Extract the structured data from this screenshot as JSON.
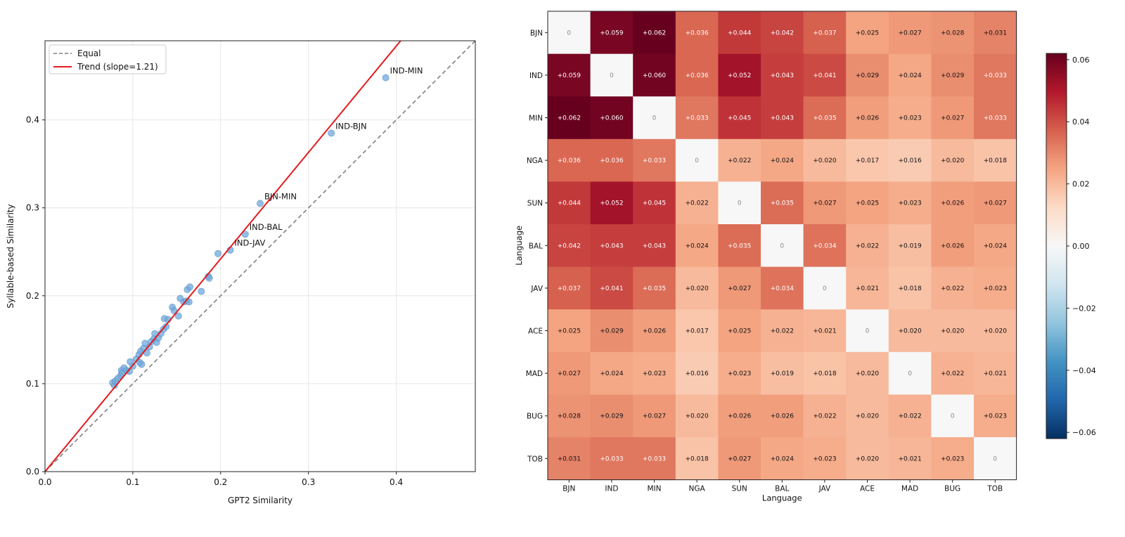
{
  "chart_data": [
    {
      "type": "scatter",
      "xlabel": "GPT2 Similarity",
      "ylabel": "Syllable-based Similarity",
      "xlim": [
        0,
        0.49
      ],
      "ylim": [
        0,
        0.49
      ],
      "xticks": [
        0.0,
        0.1,
        0.2,
        0.3,
        0.4
      ],
      "yticks": [
        0.0,
        0.1,
        0.2,
        0.3,
        0.4
      ],
      "xtick_labels": [
        "0.0",
        "0.1",
        "0.2",
        "0.3",
        "0.4"
      ],
      "ytick_labels": [
        "0.0",
        "0.1",
        "0.2",
        "0.3",
        "0.4"
      ],
      "grid": true,
      "legend_position": "top-left",
      "legend": [
        {
          "label": "Equal",
          "style": "dashed",
          "color": "#7f7f7f"
        },
        {
          "label": "Trend (slope=1.21)",
          "style": "solid",
          "color": "#e41a1c"
        }
      ],
      "lines": {
        "equal": {
          "slope": 1.0,
          "intercept": 0.0
        },
        "trend": {
          "slope": 1.21,
          "intercept": 0.0
        }
      },
      "marker_color": "#6fa8dc",
      "points": [
        [
          0.077,
          0.101
        ],
        [
          0.079,
          0.098
        ],
        [
          0.08,
          0.103
        ],
        [
          0.083,
          0.106
        ],
        [
          0.086,
          0.109
        ],
        [
          0.087,
          0.115
        ],
        [
          0.088,
          0.112
        ],
        [
          0.09,
          0.118
        ],
        [
          0.093,
          0.115
        ],
        [
          0.096,
          0.114
        ],
        [
          0.097,
          0.125
        ],
        [
          0.1,
          0.12
        ],
        [
          0.104,
          0.128
        ],
        [
          0.107,
          0.133
        ],
        [
          0.108,
          0.124
        ],
        [
          0.11,
          0.122
        ],
        [
          0.109,
          0.137
        ],
        [
          0.112,
          0.14
        ],
        [
          0.114,
          0.146
        ],
        [
          0.116,
          0.135
        ],
        [
          0.119,
          0.142
        ],
        [
          0.121,
          0.148
        ],
        [
          0.124,
          0.151
        ],
        [
          0.125,
          0.157
        ],
        [
          0.127,
          0.147
        ],
        [
          0.129,
          0.152
        ],
        [
          0.132,
          0.157
        ],
        [
          0.135,
          0.162
        ],
        [
          0.136,
          0.174
        ],
        [
          0.138,
          0.165
        ],
        [
          0.14,
          0.173
        ],
        [
          0.145,
          0.187
        ],
        [
          0.147,
          0.183
        ],
        [
          0.152,
          0.177
        ],
        [
          0.154,
          0.197
        ],
        [
          0.158,
          0.193
        ],
        [
          0.161,
          0.194
        ],
        [
          0.162,
          0.207
        ],
        [
          0.164,
          0.193
        ],
        [
          0.165,
          0.21
        ],
        [
          0.178,
          0.205
        ],
        [
          0.186,
          0.222
        ],
        [
          0.187,
          0.22
        ],
        [
          0.197,
          0.248
        ],
        [
          0.211,
          0.252
        ],
        [
          0.228,
          0.27
        ],
        [
          0.245,
          0.305
        ],
        [
          0.326,
          0.385
        ],
        [
          0.388,
          0.448
        ]
      ],
      "annotations": [
        {
          "label": "IND-MIN",
          "x": 0.388,
          "y": 0.448
        },
        {
          "label": "IND-BJN",
          "x": 0.326,
          "y": 0.385
        },
        {
          "label": "BJN-MIN",
          "x": 0.245,
          "y": 0.305
        },
        {
          "label": "IND-BAL",
          "x": 0.228,
          "y": 0.27
        },
        {
          "label": "IND-JAV",
          "x": 0.211,
          "y": 0.252
        }
      ]
    },
    {
      "type": "heatmap",
      "xlabel": "Language",
      "ylabel": "Language",
      "labels": [
        "BJN",
        "IND",
        "MIN",
        "NGA",
        "SUN",
        "BAL",
        "JAV",
        "ACE",
        "MAD",
        "BUG",
        "TOB"
      ],
      "values": [
        [
          0,
          0.059,
          0.062,
          0.036,
          0.044,
          0.042,
          0.037,
          0.025,
          0.027,
          0.028,
          0.031
        ],
        [
          0.059,
          0,
          0.06,
          0.036,
          0.052,
          0.043,
          0.041,
          0.029,
          0.024,
          0.029,
          0.033
        ],
        [
          0.062,
          0.06,
          0,
          0.033,
          0.045,
          0.043,
          0.035,
          0.026,
          0.023,
          0.027,
          0.033
        ],
        [
          0.036,
          0.036,
          0.033,
          0,
          0.022,
          0.024,
          0.02,
          0.017,
          0.016,
          0.02,
          0.018
        ],
        [
          0.044,
          0.052,
          0.045,
          0.022,
          0,
          0.035,
          0.027,
          0.025,
          0.023,
          0.026,
          0.027
        ],
        [
          0.042,
          0.043,
          0.043,
          0.024,
          0.035,
          0,
          0.034,
          0.022,
          0.019,
          0.026,
          0.024
        ],
        [
          0.037,
          0.041,
          0.035,
          0.02,
          0.027,
          0.034,
          0,
          0.021,
          0.018,
          0.022,
          0.023
        ],
        [
          0.025,
          0.029,
          0.026,
          0.017,
          0.025,
          0.022,
          0.021,
          0,
          0.02,
          0.02,
          0.02
        ],
        [
          0.027,
          0.024,
          0.023,
          0.016,
          0.023,
          0.019,
          0.018,
          0.02,
          0,
          0.022,
          0.021
        ],
        [
          0.028,
          0.029,
          0.027,
          0.02,
          0.026,
          0.026,
          0.022,
          0.02,
          0.022,
          0,
          0.023
        ],
        [
          0.031,
          0.033,
          0.033,
          0.018,
          0.027,
          0.024,
          0.023,
          0.02,
          0.021,
          0.023,
          0
        ]
      ],
      "colormap": "RdBu_r",
      "vmin": -0.062,
      "vmax": 0.062,
      "colorbar_ticks": [
        0.06,
        0.04,
        0.02,
        0.0,
        -0.02,
        -0.04,
        -0.06
      ],
      "colorbar_tick_labels": [
        "0.06",
        "0.04",
        "0.02",
        "0.00",
        "−0.02",
        "−0.04",
        "−0.06"
      ]
    }
  ]
}
